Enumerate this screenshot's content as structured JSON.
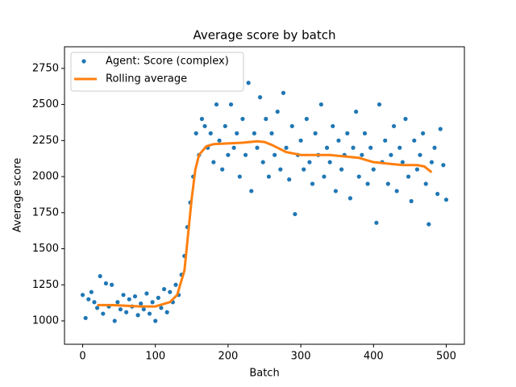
{
  "chart_data": {
    "type": "scatter",
    "title": "Average score by batch",
    "xlabel": "Batch",
    "ylabel": "Average score",
    "xlim": [
      -25,
      525
    ],
    "ylim": [
      838,
      2900
    ],
    "xticks": [
      0,
      100,
      200,
      300,
      400,
      500
    ],
    "yticks": [
      1000,
      1250,
      1500,
      1750,
      2000,
      2250,
      2500,
      2750
    ],
    "legend": "upper left",
    "series": [
      {
        "name": "Agent: Score (complex)",
        "type": "scatter",
        "color": "#1f77b4",
        "x": [
          0,
          4,
          8,
          12,
          16,
          20,
          24,
          28,
          32,
          36,
          40,
          44,
          48,
          52,
          56,
          60,
          64,
          68,
          72,
          76,
          80,
          84,
          88,
          92,
          96,
          100,
          104,
          108,
          112,
          116,
          120,
          124,
          128,
          132,
          136,
          140,
          144,
          148,
          152,
          156,
          160,
          164,
          168,
          172,
          176,
          180,
          184,
          188,
          192,
          196,
          200,
          204,
          208,
          212,
          216,
          220,
          224,
          228,
          232,
          236,
          240,
          244,
          248,
          252,
          256,
          260,
          264,
          268,
          272,
          276,
          280,
          284,
          288,
          292,
          296,
          300,
          304,
          308,
          312,
          316,
          320,
          324,
          328,
          332,
          336,
          340,
          344,
          348,
          352,
          356,
          360,
          364,
          368,
          372,
          376,
          380,
          384,
          388,
          392,
          396,
          400,
          404,
          408,
          412,
          416,
          420,
          424,
          428,
          432,
          436,
          440,
          444,
          448,
          452,
          456,
          460,
          464,
          468,
          472,
          476,
          480,
          484,
          488,
          492,
          496,
          500
        ],
        "values": [
          1180,
          1020,
          1150,
          1200,
          1130,
          1090,
          1310,
          1050,
          1260,
          1100,
          1250,
          1000,
          1130,
          1080,
          1180,
          1060,
          1150,
          1100,
          1170,
          1040,
          1120,
          1080,
          1190,
          1050,
          1130,
          1000,
          1160,
          1090,
          1220,
          1060,
          1200,
          1130,
          1250,
          1180,
          1320,
          1450,
          1650,
          1820,
          2000,
          2300,
          2150,
          2400,
          2350,
          2200,
          2300,
          2100,
          2500,
          2250,
          2050,
          2350,
          2150,
          2500,
          2200,
          2300,
          2000,
          2400,
          2150,
          2650,
          1900,
          2300,
          2200,
          2550,
          2100,
          2400,
          2000,
          2300,
          2150,
          2450,
          2050,
          2580,
          2200,
          1980,
          2350,
          1740,
          2150,
          2250,
          2050,
          2400,
          2100,
          1950,
          2300,
          2150,
          2500,
          2000,
          2200,
          2100,
          2350,
          1900,
          2250,
          2050,
          2150,
          2300,
          1850,
          2200,
          2450,
          2000,
          2150,
          2300,
          1950,
          2200,
          2050,
          1680,
          2500,
          2100,
          2250,
          1950,
          2150,
          2350,
          1900,
          2200,
          2100,
          2400,
          2000,
          1830,
          2250,
          2050,
          2150,
          2300,
          1950,
          1670,
          2100,
          2200,
          1880,
          2330,
          2080,
          1840
        ]
      },
      {
        "name": "Rolling average",
        "type": "line",
        "color": "#ff7f0e",
        "x": [
          20,
          40,
          60,
          80,
          100,
          120,
          130,
          140,
          145,
          150,
          155,
          160,
          170,
          180,
          200,
          220,
          240,
          250,
          260,
          280,
          300,
          320,
          340,
          360,
          380,
          400,
          420,
          440,
          460,
          470,
          480
        ],
        "values": [
          1110,
          1110,
          1105,
          1100,
          1100,
          1130,
          1180,
          1350,
          1600,
          1850,
          2050,
          2150,
          2210,
          2225,
          2230,
          2235,
          2245,
          2240,
          2220,
          2170,
          2150,
          2150,
          2150,
          2140,
          2130,
          2100,
          2090,
          2080,
          2080,
          2070,
          2030
        ]
      }
    ]
  }
}
